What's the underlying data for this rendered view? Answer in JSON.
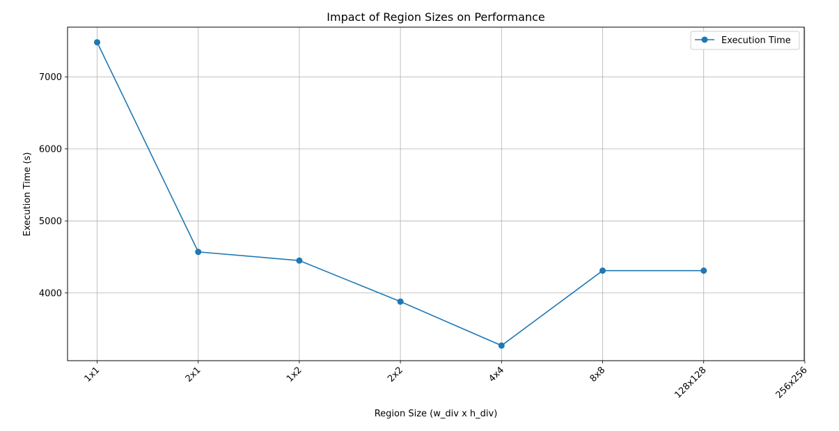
{
  "chart_data": {
    "type": "line",
    "title": "Impact of Region Sizes on Performance",
    "xlabel": "Region Size (w_div x h_div)",
    "ylabel": "Execution Time (s)",
    "categories": [
      "1x1",
      "2x1",
      "1x2",
      "2x2",
      "4x4",
      "8x8",
      "128x128",
      "256x256"
    ],
    "series": [
      {
        "name": "Execution Time",
        "color": "#1f77b4",
        "marker": "circle",
        "values": [
          7480,
          4570,
          4450,
          3880,
          3270,
          4310,
          4310,
          null
        ]
      }
    ],
    "yticks": [
      4000,
      5000,
      6000,
      7000
    ],
    "ylim": [
      3060,
      7690
    ],
    "grid": true,
    "legend_position": "top-right"
  }
}
